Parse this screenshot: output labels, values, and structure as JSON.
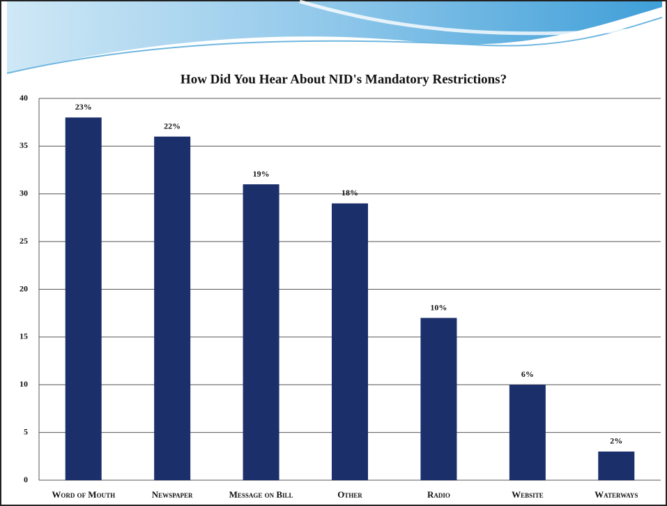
{
  "chart_data": {
    "type": "bar",
    "title": "How Did You Hear About NID's Mandatory Restrictions?",
    "categories": [
      "Word of Mouth",
      "Newspaper",
      "Message on Bill",
      "Other",
      "Radio",
      "Website",
      "Waterways"
    ],
    "values": [
      38,
      36,
      31,
      29,
      17,
      10,
      3
    ],
    "data_labels": [
      "23%",
      "22%",
      "19%",
      "18%",
      "10%",
      "6%",
      "2%"
    ],
    "color": "#1b2f6b",
    "ylim": [
      0,
      40
    ],
    "yticks": [
      0,
      5,
      10,
      15,
      20,
      25,
      30,
      35,
      40
    ],
    "grid": true
  }
}
